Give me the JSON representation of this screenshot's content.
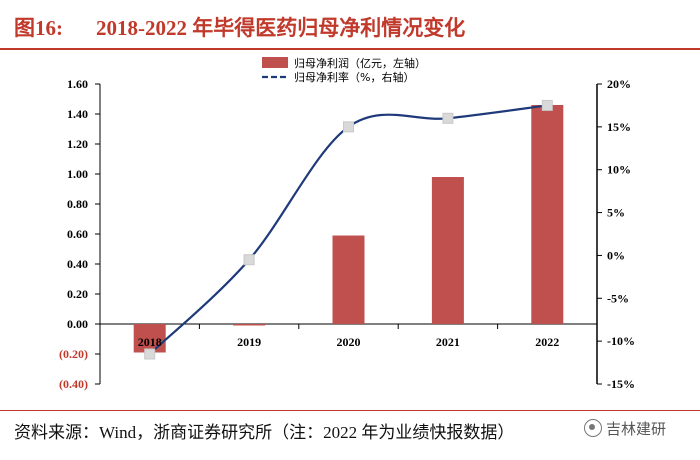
{
  "title": {
    "prefix": "图16:",
    "text": "2018-2022 年毕得医药归母净利情况变化"
  },
  "source_note": "资料来源：Wind，浙商证券研究所（注：2022 年为业绩快报数据）",
  "watermark": "吉林建研",
  "colors": {
    "bar": "#c0504d",
    "line": "#1f3a7a",
    "marker": "#d9d9d9",
    "negative_label": "#c0392b",
    "title": "#c0392b"
  },
  "chart_data": {
    "type": "bar",
    "categories": [
      "2018",
      "2019",
      "2020",
      "2021",
      "2022"
    ],
    "series": [
      {
        "name": "归母净利润（亿元，左轴）",
        "kind": "bar",
        "axis": "left",
        "values": [
          -0.19,
          -0.01,
          0.59,
          0.98,
          1.46
        ]
      },
      {
        "name": "归母净利率（%，右轴）",
        "kind": "line",
        "axis": "right",
        "values": [
          -11.5,
          -0.5,
          15.0,
          16.0,
          17.5
        ]
      }
    ],
    "y_left": {
      "ylim": [
        -0.4,
        1.6
      ],
      "ticks": [
        "(0.40)",
        "(0.20)",
        "0.00",
        "0.20",
        "0.40",
        "0.60",
        "0.80",
        "1.00",
        "1.20",
        "1.40",
        "1.60"
      ]
    },
    "y_right": {
      "ylim": [
        -15,
        20
      ],
      "ticks": [
        "-15%",
        "-10%",
        "-5%",
        "0%",
        "5%",
        "10%",
        "15%",
        "20%"
      ]
    },
    "legend_position": "top-center",
    "grid": false
  }
}
